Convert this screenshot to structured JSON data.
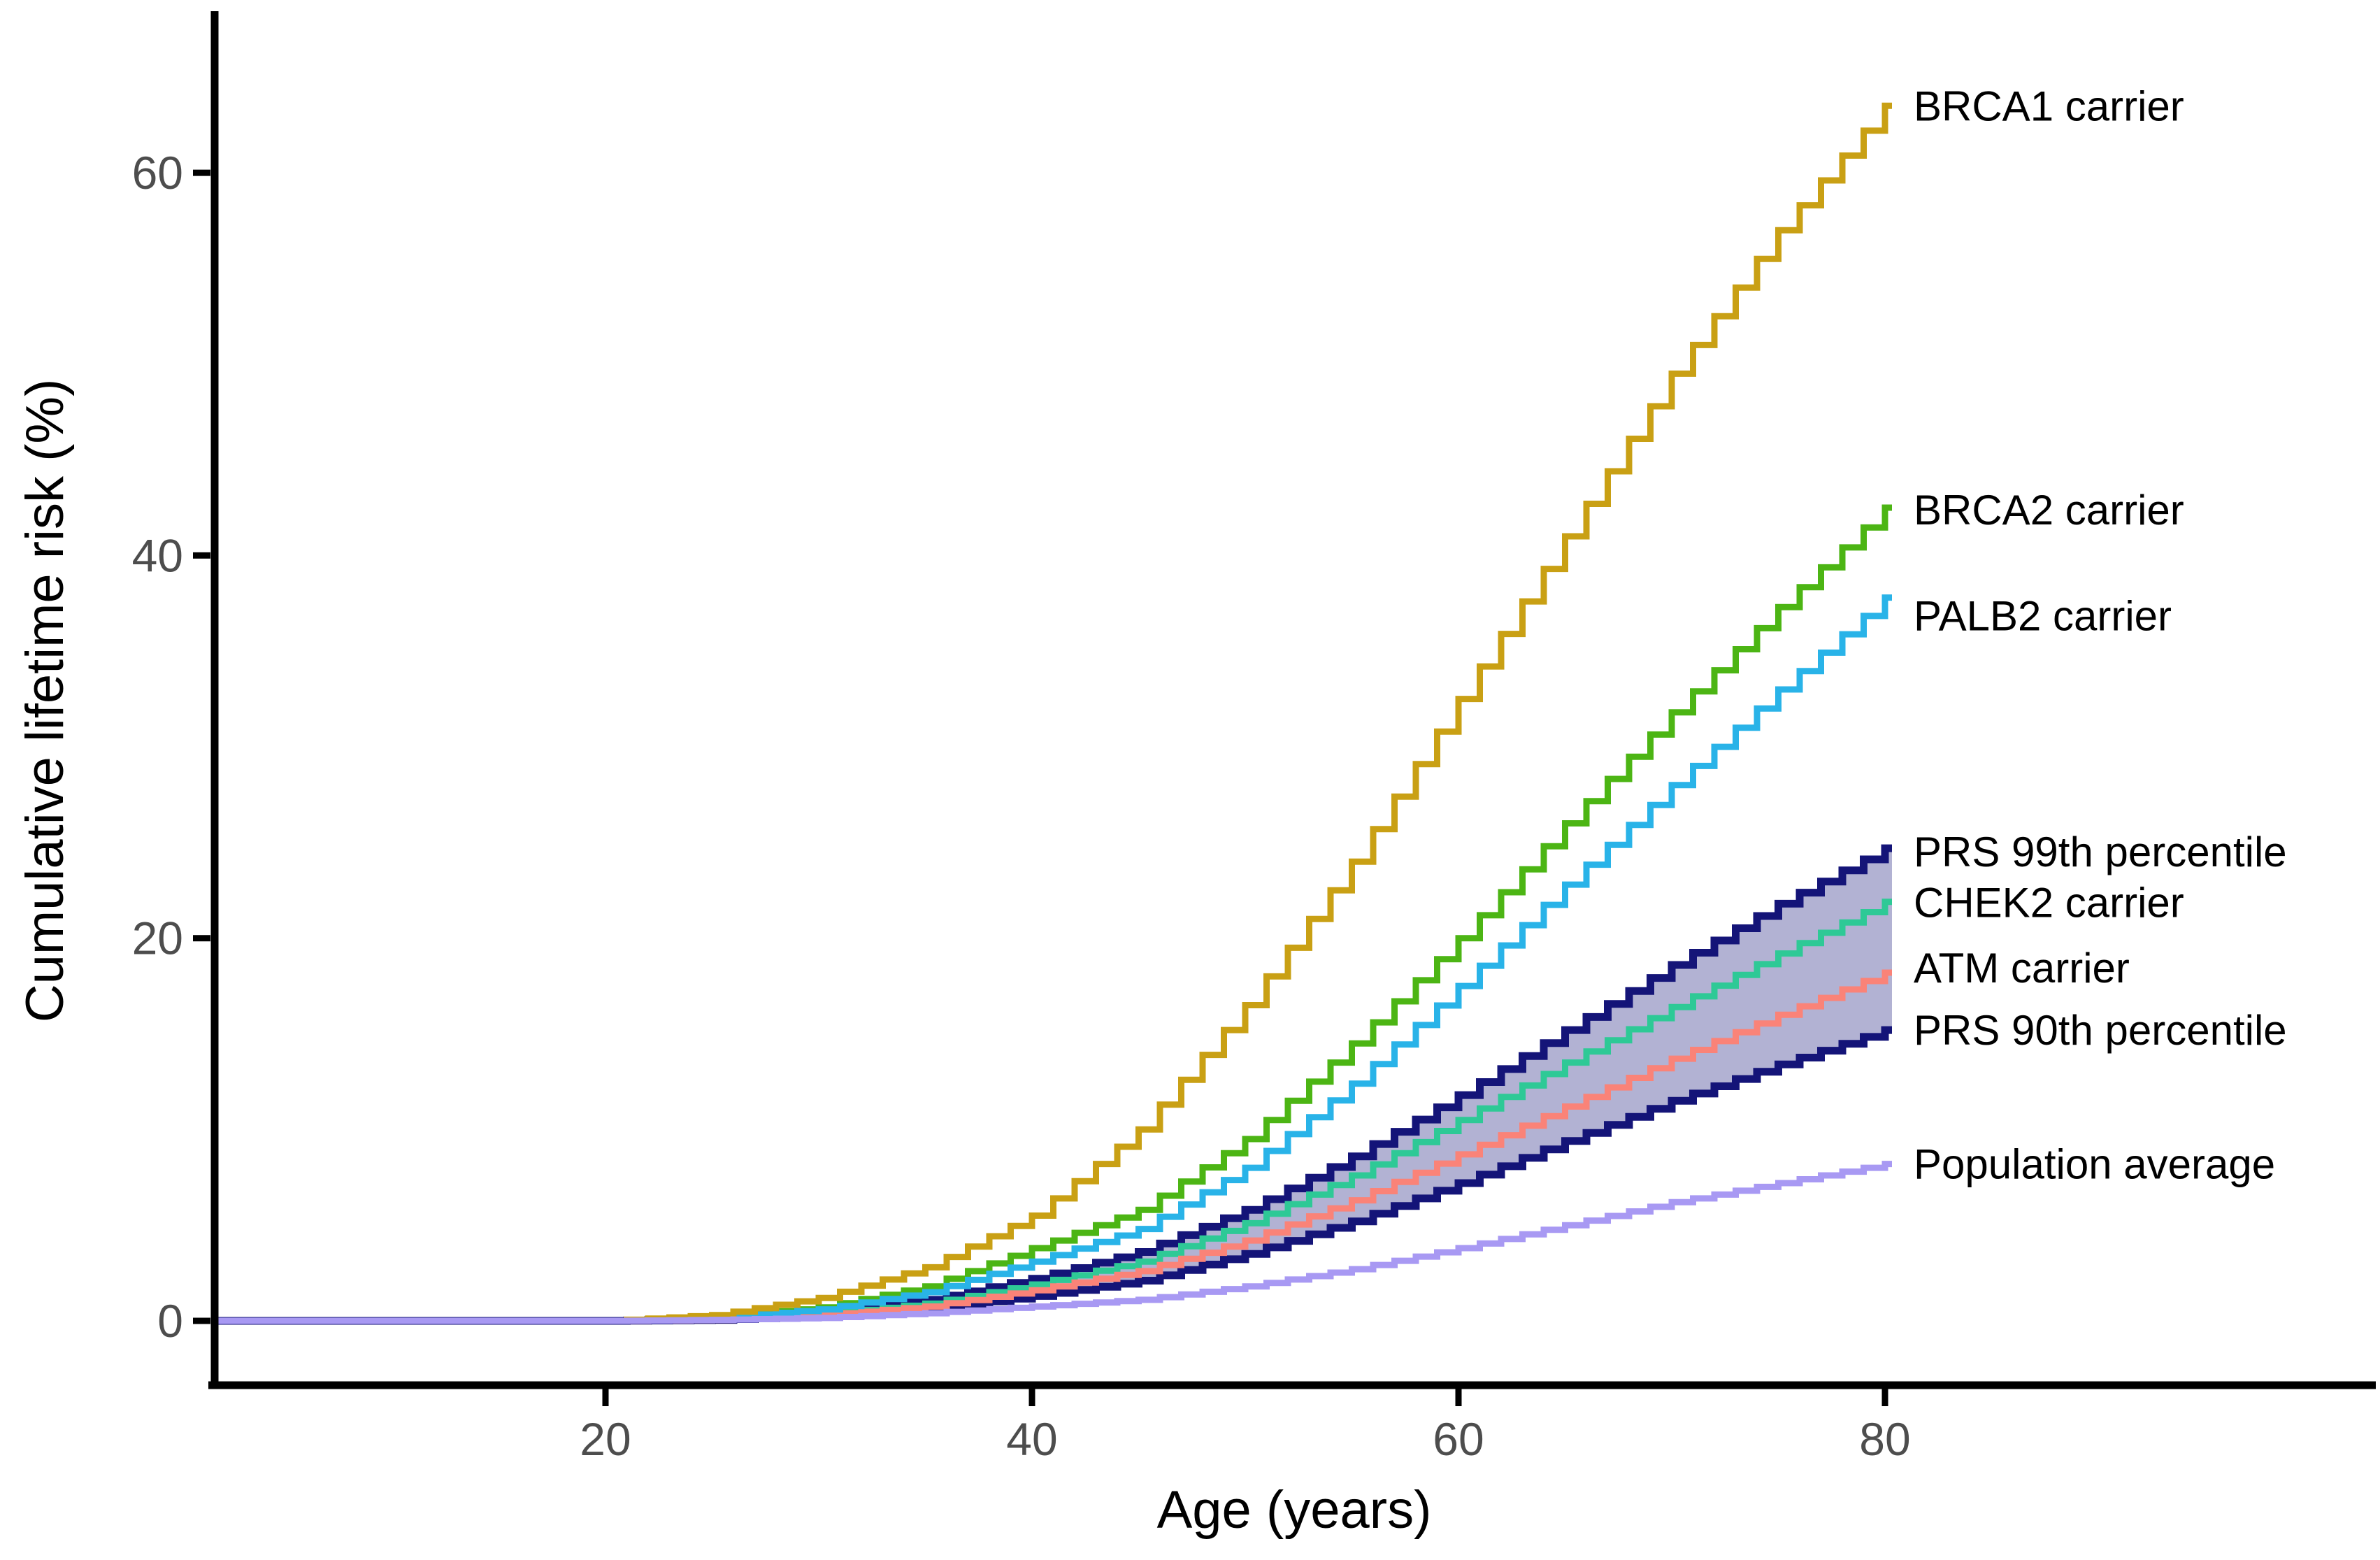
{
  "chart_data": {
    "type": "line",
    "style": "step",
    "title": "",
    "xlabel": "Age (years)",
    "ylabel": "Cumulative lifetime risk (%)",
    "x_ticks": [
      "20",
      "40",
      "60",
      "80"
    ],
    "x_tick_values": [
      20,
      40,
      60,
      80
    ],
    "y_ticks": [
      "0",
      "20",
      "40",
      "60"
    ],
    "y_tick_values": [
      0,
      20,
      40,
      60
    ],
    "xlim": [
      1.7,
      103
    ],
    "ylim": [
      -3.4,
      68.4
    ],
    "grid": false,
    "legend_position": "direct-labels-right-of-curve-ends",
    "ages": [
      0,
      20,
      25,
      30,
      35,
      40,
      45,
      50,
      55,
      60,
      65,
      70,
      75,
      80
    ],
    "series": [
      {
        "name": "BRCA1 carrier",
        "color": "#C9A014",
        "values": [
          0,
          0,
          0.3,
          1.2,
          2.8,
          5.5,
          10,
          16.5,
          24,
          32.5,
          41,
          49.5,
          57,
          63.5
        ]
      },
      {
        "name": "BRCA2 carrier",
        "color": "#4CB514",
        "values": [
          0,
          0,
          0.2,
          0.7,
          1.8,
          3.8,
          5.8,
          9.5,
          14.5,
          20,
          26,
          31.8,
          37.3,
          42.5
        ]
      },
      {
        "name": "PALB2 carrier",
        "color": "#29B3E8",
        "values": [
          0,
          0,
          0.15,
          0.6,
          1.5,
          3.1,
          4.8,
          8.0,
          12.4,
          17.5,
          22.8,
          28,
          33,
          37.8
        ]
      },
      {
        "name": "PRS 99th percentile",
        "color": "#141478",
        "values": [
          0,
          0,
          0.1,
          0.4,
          1.1,
          2.2,
          3.6,
          5.8,
          8.6,
          11.8,
          15.2,
          18.6,
          21.8,
          24.7
        ]
      },
      {
        "name": "CHEK2 carrier",
        "color": "#2EC996",
        "values": [
          0,
          0,
          0.1,
          0.35,
          0.9,
          1.9,
          3.1,
          5.1,
          7.6,
          10.5,
          13.5,
          16.4,
          19.2,
          21.9
        ]
      },
      {
        "name": "ATM carrier",
        "color": "#FA8378",
        "values": [
          0,
          0,
          0.05,
          0.3,
          0.75,
          1.6,
          2.6,
          4.2,
          6.3,
          8.7,
          11.2,
          13.7,
          16.0,
          18.2
        ]
      },
      {
        "name": "PRS 90th percentile",
        "color": "#141478",
        "values": [
          0,
          0,
          0.05,
          0.25,
          0.6,
          1.3,
          2.1,
          3.5,
          5.2,
          7.2,
          9.4,
          11.5,
          13.4,
          15.2
        ]
      },
      {
        "name": "Population average",
        "color": "#A899F3",
        "values": [
          0,
          0,
          0.05,
          0.15,
          0.4,
          0.75,
          1.1,
          1.8,
          2.7,
          3.8,
          5.0,
          6.2,
          7.2,
          8.2
        ]
      }
    ],
    "band": {
      "name": "PRS 90th-99th percentile band",
      "upper_series": "PRS 99th percentile",
      "lower_series": "PRS 90th percentile",
      "fill": "#141478",
      "fill_opacity": 0.33
    },
    "end_values_pct_at_age_80": {
      "BRCA1 carrier": 63.5,
      "BRCA2 carrier": 42.5,
      "PALB2 carrier": 37.8,
      "PRS 99th percentile": 24.7,
      "CHEK2 carrier": 21.9,
      "ATM carrier": 18.2,
      "PRS 90th percentile": 15.2,
      "Population average": 8.2
    },
    "colors": {
      "axis": "#000000",
      "tick_text": "#4d4d4d",
      "label_text": "#000000",
      "background": "#ffffff"
    }
  }
}
